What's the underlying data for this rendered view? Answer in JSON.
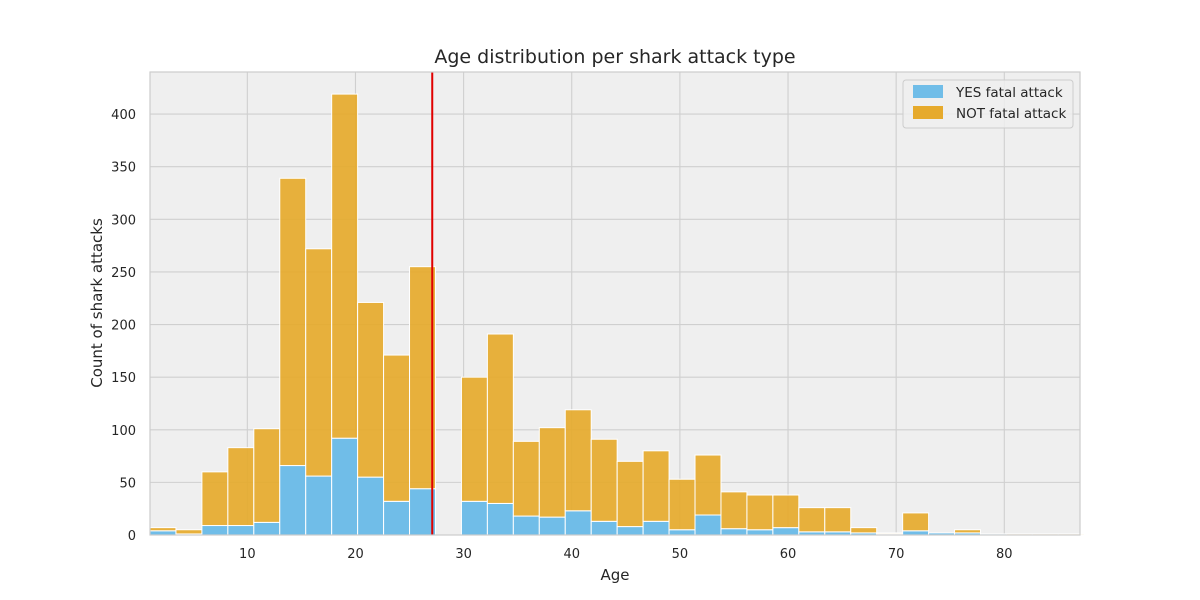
{
  "chart_data": {
    "type": "bar",
    "subtype": "stacked-histogram",
    "title": "Age distribution per shark attack type",
    "xlabel": "Age",
    "ylabel": "Count of shark attacks",
    "xlim": [
      1,
      87
    ],
    "ylim": [
      0,
      440
    ],
    "xticks": [
      10,
      20,
      30,
      40,
      50,
      60,
      70,
      80
    ],
    "yticks": [
      0,
      50,
      100,
      150,
      200,
      250,
      300,
      350,
      400
    ],
    "grid": true,
    "legend_position": "top-right",
    "bin_starts": [
      1,
      3.4,
      5.8,
      8.2,
      10.6,
      13,
      15.4,
      17.8,
      20.2,
      22.6,
      25,
      27.4,
      29.8,
      32.2,
      34.6,
      37,
      39.4,
      41.8,
      44.2,
      46.6,
      49,
      51.4,
      53.8,
      56.2,
      58.6,
      61,
      63.4,
      65.8,
      68.2,
      70.6,
      73,
      75.4,
      77.8,
      80.2,
      82.6,
      85
    ],
    "bin_width": 2.4,
    "reference_line": {
      "x": 27.1,
      "color": "#e00000"
    },
    "series": [
      {
        "name": "YES fatal attack",
        "color": "#70bde8",
        "values": [
          4,
          1,
          9,
          9,
          12,
          66,
          56,
          92,
          55,
          32,
          44,
          0,
          32,
          30,
          18,
          17,
          23,
          13,
          8,
          13,
          5,
          19,
          6,
          5,
          7,
          3,
          3,
          2,
          1,
          4,
          2,
          2,
          1,
          0,
          0,
          0
        ]
      },
      {
        "name": "NOT fatal attack",
        "color": "#e6aa2c",
        "values": [
          3,
          4,
          51,
          74,
          89,
          273,
          216,
          327,
          166,
          139,
          211,
          0,
          118,
          161,
          71,
          85,
          96,
          78,
          62,
          67,
          48,
          57,
          35,
          33,
          31,
          23,
          23,
          5,
          1,
          17,
          0,
          3,
          0,
          1,
          1,
          1
        ]
      }
    ]
  }
}
